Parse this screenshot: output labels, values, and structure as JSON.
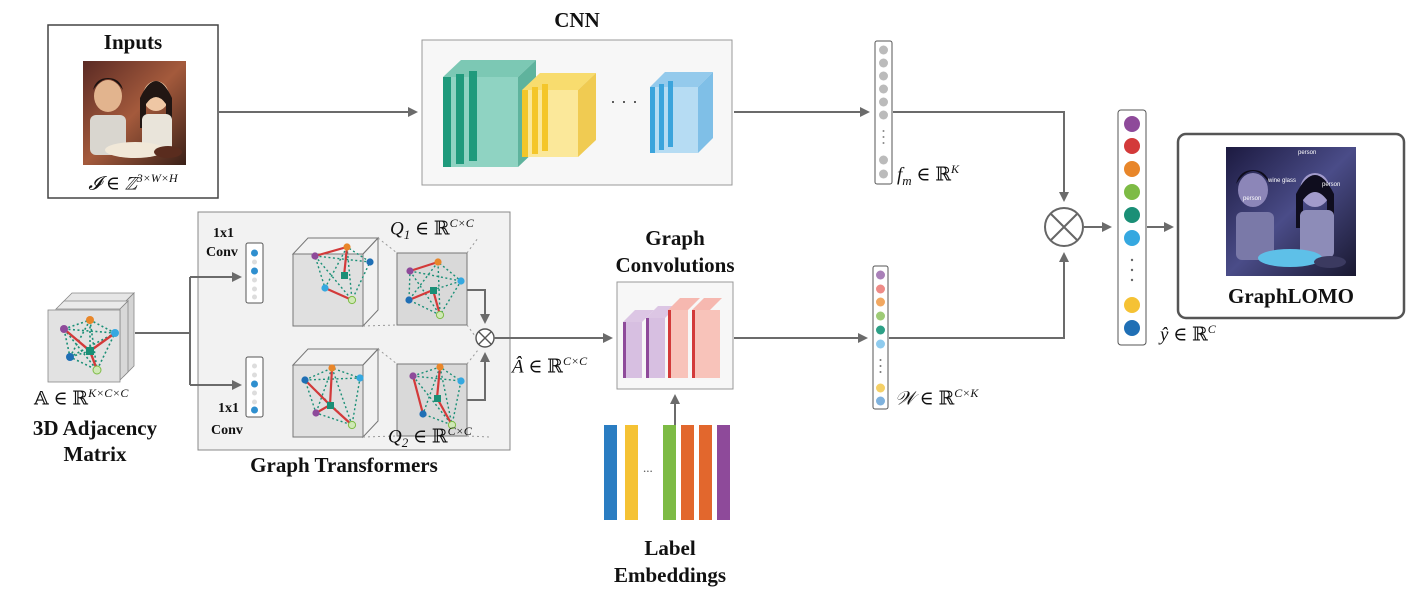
{
  "inputs": {
    "title": "Inputs",
    "formula": "𝓘 ∈ ℤ^{3×W×H}",
    "formula_main": "𝓘 ∈ ℤ",
    "formula_sup": "3×W×H"
  },
  "cnn": {
    "title": "CNN",
    "ellipsis": "· · ·"
  },
  "feature": {
    "symbol": "f",
    "sub": "m",
    "rel": "∈ ℝ",
    "sup": "K"
  },
  "adjacency": {
    "formula_main": "𝔸 ∈ ℝ",
    "formula_sup": "K×C×C",
    "title_line1": "3D Adjacency",
    "title_line2": "Matrix"
  },
  "graph_transformers": {
    "title": "Graph Transformers",
    "conv_top": {
      "line1": "1x1",
      "line2": "Conv"
    },
    "conv_bottom": {
      "line1": "1x1",
      "line2": "Conv"
    },
    "q1": {
      "symbol": "Q",
      "sub": "1",
      "rel": "∈ ℝ",
      "sup": "C×C"
    },
    "q2": {
      "symbol": "Q",
      "sub": "2",
      "rel": "∈ ℝ",
      "sup": "C×C"
    }
  },
  "a_hat": {
    "symbol": "Â",
    "rel": "∈ ℝ",
    "sup": "C×C"
  },
  "graph_convolutions": {
    "line1": "Graph",
    "line2": "Convolutions"
  },
  "label_embeddings": {
    "line1": "Label",
    "line2": "Embeddings",
    "ellipsis": "..."
  },
  "w_vec": {
    "symbol": "𝒲",
    "rel": "∈ ℝ",
    "sup": "C×K"
  },
  "output": {
    "symbol": "ŷ",
    "rel": "∈ ℝ",
    "sup": "C"
  },
  "result": {
    "title": "GraphLOMO",
    "detections": [
      "person",
      "wine glass",
      "person",
      "person"
    ]
  },
  "colors": {
    "teal": "#1f9a7c",
    "teal_light": "#8fd3c2",
    "yellow": "#f4cd3f",
    "yellow_light": "#fbe89a",
    "blue": "#3ba4dc",
    "blue_light": "#b6dcf3",
    "purple": "#8e4a9a",
    "red": "#d33a3a",
    "orange": "#e8862a",
    "green": "#7dbb45",
    "dark_teal": "#1a8f76",
    "sky": "#35a8e0",
    "gold": "#f5c234",
    "navy": "#1f6fb5",
    "arrow": "#6b6b6b"
  }
}
